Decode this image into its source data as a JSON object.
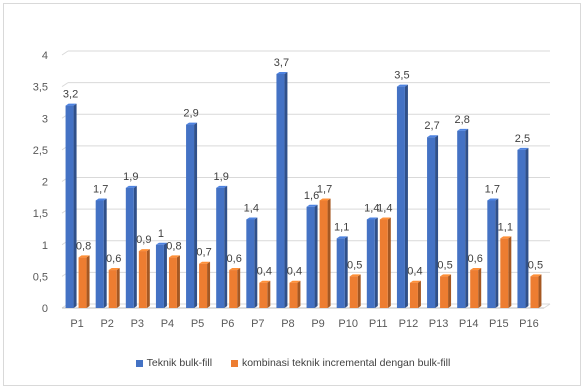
{
  "chart_data": {
    "type": "bar",
    "style": "3d-clustered-column",
    "categories": [
      "P1",
      "P2",
      "P3",
      "P4",
      "P5",
      "P6",
      "P7",
      "P8",
      "P9",
      "P10",
      "P11",
      "P12",
      "P13",
      "P14",
      "P15",
      "P16"
    ],
    "series": [
      {
        "name": "Teknik bulk-fill",
        "color": "#4472C4",
        "values": [
          3.2,
          1.7,
          1.9,
          1.0,
          2.9,
          1.9,
          1.4,
          3.7,
          1.6,
          1.1,
          1.4,
          3.5,
          2.7,
          2.8,
          1.7,
          2.5
        ],
        "labels": [
          "3,2",
          "1,7",
          "1,9",
          "1",
          "2,9",
          "1,9",
          "1,4",
          "3,7",
          "1,6",
          "1,1",
          "1,4",
          "3,5",
          "2,7",
          "2,8",
          "1,7",
          "2,5"
        ]
      },
      {
        "name": "kombinasi teknik incremental dengan bulk-fill",
        "color": "#ED7D31",
        "values": [
          0.8,
          0.6,
          0.9,
          0.8,
          0.7,
          0.6,
          0.4,
          0.4,
          1.7,
          0.5,
          1.4,
          0.4,
          0.5,
          0.6,
          1.1,
          0.5
        ],
        "labels": [
          "0,8",
          "0,6",
          "0,9",
          "0,8",
          "0,7",
          "0,6",
          "0,4",
          "0,4",
          "1,7",
          "0,5",
          "1,4",
          "0,4",
          "0,5",
          "0,6",
          "1,1",
          "0,5"
        ]
      }
    ],
    "ylim": [
      0,
      4
    ],
    "yticks": [
      "0",
      "0,5",
      "1",
      "1,5",
      "2",
      "2,5",
      "3",
      "3,5",
      "4"
    ],
    "grid": true,
    "legend_position": "bottom",
    "title": "",
    "xlabel": "",
    "ylabel": ""
  }
}
